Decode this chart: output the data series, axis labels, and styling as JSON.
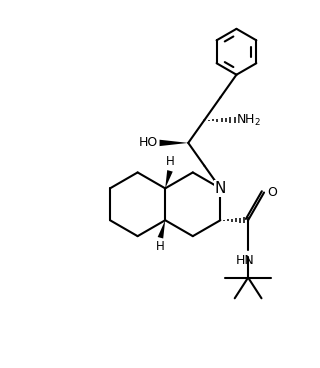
{
  "background": "#ffffff",
  "line_color": "#000000",
  "line_width": 1.5,
  "font_size": 9.0,
  "figsize": [
    3.2,
    3.68
  ],
  "dpi": 100,
  "xlim": [
    -1.5,
    8.5
  ],
  "ylim": [
    -1.0,
    10.5
  ]
}
